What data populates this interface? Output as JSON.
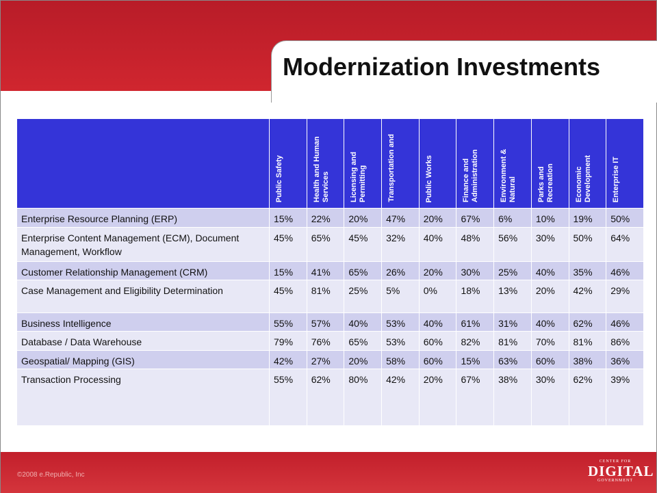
{
  "header": {
    "title": "Modernization Investments"
  },
  "table": {
    "columns": [
      "Public Safety",
      "Health and Human Services",
      "Licensing and Permitting",
      "Transportation and",
      "Public Works",
      "Finance and Administration",
      "Environment & Natural",
      "Parks and Recreation",
      "Economic Development",
      "Enterprise IT"
    ],
    "rows": [
      [
        "Enterprise Resource Planning (ERP)",
        "15%",
        "22%",
        "20%",
        "47%",
        "20%",
        "67%",
        "6%",
        "10%",
        "19%",
        "50%"
      ],
      [
        "Enterprise Content Management (ECM), Document Management, Workflow",
        "45%",
        "65%",
        "45%",
        "32%",
        "40%",
        "48%",
        "56%",
        "30%",
        "50%",
        "64%"
      ],
      [
        "Customer Relationship Management (CRM)",
        "15%",
        "41%",
        "65%",
        "26%",
        "20%",
        "30%",
        "25%",
        "40%",
        "35%",
        "46%"
      ],
      [
        "Case Management and Eligibility Determination",
        "45%",
        "81%",
        "25%",
        "5%",
        "0%",
        "18%",
        "13%",
        "20%",
        "42%",
        "29%"
      ],
      [
        "Business Intelligence",
        "55%",
        "57%",
        "40%",
        "53%",
        "40%",
        "61%",
        "31%",
        "40%",
        "62%",
        "46%"
      ],
      [
        "Database / Data Warehouse",
        "79%",
        "76%",
        "65%",
        "53%",
        "60%",
        "82%",
        "81%",
        "70%",
        "81%",
        "86%"
      ],
      [
        "Geospatial/ Mapping (GIS)",
        "42%",
        "27%",
        "20%",
        "58%",
        "60%",
        "15%",
        "63%",
        "60%",
        "38%",
        "36%"
      ],
      [
        "Transaction Processing",
        "55%",
        "62%",
        "80%",
        "42%",
        "20%",
        "67%",
        "38%",
        "30%",
        "62%",
        "39%"
      ]
    ]
  },
  "footer": {
    "copyright": "©2008 e.Republic, Inc",
    "logo_top": "CENTER FOR",
    "logo_main": "DIGITAL",
    "logo_bottom": "GOVERNMENT"
  }
}
